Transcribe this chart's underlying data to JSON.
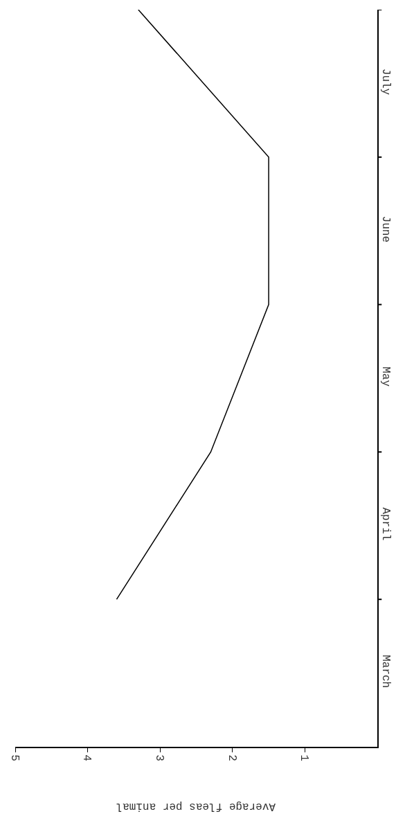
{
  "chart_data": {
    "type": "line",
    "orientation": "horizontal",
    "xlabel": "Average fleas per animal",
    "categories": [
      null,
      "July",
      null,
      "June",
      null,
      "May",
      null,
      "April",
      null,
      "March"
    ],
    "series": [
      {
        "color": "#000000",
        "values": [
          3.3,
          null,
          1.5,
          null,
          1.5,
          null,
          2.3,
          null,
          3.6,
          null
        ]
      }
    ],
    "xlim": [
      5,
      0
    ],
    "xticks": [
      1,
      2,
      3,
      4,
      5
    ],
    "marker": "none",
    "line_style": "solid"
  }
}
